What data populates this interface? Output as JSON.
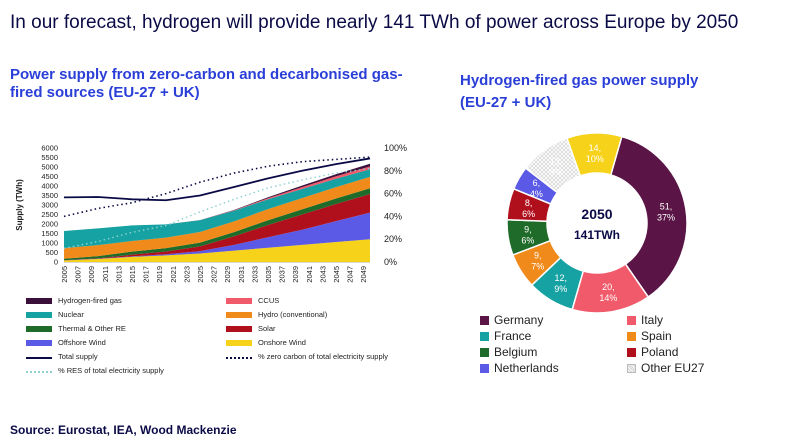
{
  "headline": "In our forecast, hydrogen will provide nearly 141 TWh of power across Europe by 2050",
  "left_title": "Power supply from zero-carbon and decarbonised gas-fired sources (EU-27 + UK)",
  "right_title_line1": "Hydrogen-fired gas power supply",
  "right_title_line2": "(EU-27 + UK)",
  "source": "Source: Eurostat, IEA, Wood Mackenzie",
  "colors": {
    "hydrogen": "#3a0f3a",
    "ccus": "#f05a6a",
    "nuclear": "#16a2a2",
    "hydro": "#f08a1a",
    "thermal": "#1f6b2a",
    "solar": "#b0101c",
    "offshore": "#5a5ae6",
    "onshore": "#f7d21a",
    "total": "#0a0a46"
  },
  "chart_data": [
    {
      "type": "area",
      "title": "Power supply from zero-carbon and decarbonised gas-fired sources (EU-27 + UK)",
      "ylabel": "Supply (TWh)",
      "ylim": [
        0,
        6000
      ],
      "y_ticks": [
        "0",
        "500",
        "1000",
        "1500",
        "2000",
        "2500",
        "3000",
        "3500",
        "4000",
        "4500",
        "5000",
        "5500",
        "6000"
      ],
      "y2lim": [
        0,
        100
      ],
      "y2_ticks": [
        "0%",
        "20%",
        "40%",
        "60%",
        "80%",
        "100%"
      ],
      "x_ticks": [
        "2005",
        "2007",
        "2009",
        "2011",
        "2013",
        "2015",
        "2017",
        "2019",
        "2021",
        "2023",
        "2025",
        "2027",
        "2029",
        "2031",
        "2033",
        "2035",
        "2037",
        "2039",
        "2041",
        "2043",
        "2045",
        "2047",
        "2049"
      ],
      "x": [
        2005,
        2010,
        2015,
        2020,
        2025,
        2030,
        2035,
        2040,
        2045,
        2050
      ],
      "stack_order": [
        "Onshore Wind",
        "Offshore Wind",
        "Solar",
        "Thermal & Other RE",
        "Hydro (conventional)",
        "Nuclear",
        "CCUS",
        "Hydrogen-fired gas"
      ],
      "series": [
        {
          "name": "Onshore Wind",
          "values": [
            80,
            160,
            270,
            350,
            450,
            600,
            750,
            900,
            1050,
            1200
          ]
        },
        {
          "name": "Offshore Wind",
          "values": [
            5,
            10,
            25,
            60,
            120,
            300,
            550,
            800,
            1100,
            1400
          ]
        },
        {
          "name": "Solar",
          "values": [
            5,
            20,
            90,
            140,
            250,
            450,
            650,
            800,
            900,
            980
          ]
        },
        {
          "name": "Thermal & Other RE",
          "values": [
            80,
            120,
            160,
            180,
            200,
            220,
            250,
            270,
            290,
            300
          ]
        },
        {
          "name": "Hydro (conventional)",
          "values": [
            560,
            580,
            560,
            550,
            560,
            570,
            580,
            590,
            600,
            600
          ]
        },
        {
          "name": "Nuclear",
          "values": [
            900,
            880,
            820,
            700,
            620,
            560,
            520,
            480,
            440,
            400
          ]
        },
        {
          "name": "CCUS",
          "values": [
            0,
            0,
            0,
            0,
            0,
            20,
            60,
            100,
            130,
            150
          ]
        },
        {
          "name": "Hydrogen-fired gas",
          "values": [
            0,
            0,
            0,
            0,
            5,
            20,
            50,
            80,
            110,
            141
          ]
        }
      ],
      "lines": [
        {
          "name": "Total supply",
          "axis": "left",
          "values": [
            3400,
            3420,
            3300,
            3250,
            3500,
            3950,
            4400,
            4800,
            5150,
            5450
          ]
        },
        {
          "name": "% zero carbon of total electricity supply",
          "axis": "right",
          "values": [
            40,
            47,
            52,
            60,
            70,
            78,
            84,
            88,
            90,
            92
          ]
        },
        {
          "name": "% RES of total electricity supply",
          "axis": "right",
          "values": [
            12,
            18,
            26,
            32,
            44,
            55,
            65,
            72,
            78,
            82
          ]
        }
      ],
      "legend": [
        {
          "key": "hydrogen",
          "label": "Hydrogen-fired gas",
          "kind": "swatch"
        },
        {
          "key": "ccus",
          "label": "CCUS",
          "kind": "swatch"
        },
        {
          "key": "nuclear",
          "label": "Nuclear",
          "kind": "swatch"
        },
        {
          "key": "hydro",
          "label": "Hydro (conventional)",
          "kind": "swatch"
        },
        {
          "key": "thermal",
          "label": "Thermal & Other RE",
          "kind": "swatch"
        },
        {
          "key": "solar",
          "label": "Solar",
          "kind": "swatch"
        },
        {
          "key": "offshore",
          "label": "Offshore Wind",
          "kind": "swatch"
        },
        {
          "key": "onshore",
          "label": "Onshore Wind",
          "kind": "swatch"
        },
        {
          "key": "total",
          "label": "Total supply",
          "kind": "line"
        },
        {
          "key": "zero",
          "label": "% zero carbon of total electricity supply",
          "kind": "dotted"
        },
        {
          "key": "res",
          "label": "% RES of total electricity supply",
          "kind": "dotted-light"
        }
      ]
    },
    {
      "type": "pie",
      "title": "Hydrogen-fired gas power supply (EU-27 + UK)",
      "center_line1": "2050",
      "center_line2": "141TWh",
      "slices": [
        {
          "label": "Germany",
          "value": 51,
          "pct_label": "37%",
          "color": "#5a1546"
        },
        {
          "label": "Italy",
          "value": 20,
          "pct_label": "14%",
          "color": "#f05a6a"
        },
        {
          "label": "France",
          "value": 12,
          "pct_label": "9%",
          "color": "#16a2a2"
        },
        {
          "label": "Spain",
          "value": 9,
          "pct_label": "7%",
          "color": "#f08a1a"
        },
        {
          "label": "Belgium",
          "value": 9,
          "pct_label": "6%",
          "color": "#1f6b2a"
        },
        {
          "label": "Poland",
          "value": 8,
          "pct_label": "6%",
          "color": "#b0101c"
        },
        {
          "label": "Netherlands",
          "value": 6,
          "pct_label": "4%",
          "color": "#5a5ae6"
        },
        {
          "label": "Other EU27",
          "value": 13,
          "pct_label": "9%",
          "color": "#bbbbbb"
        },
        {
          "label": "",
          "value": 14,
          "pct_label": "10%",
          "color": "#f7d21a"
        }
      ]
    }
  ]
}
